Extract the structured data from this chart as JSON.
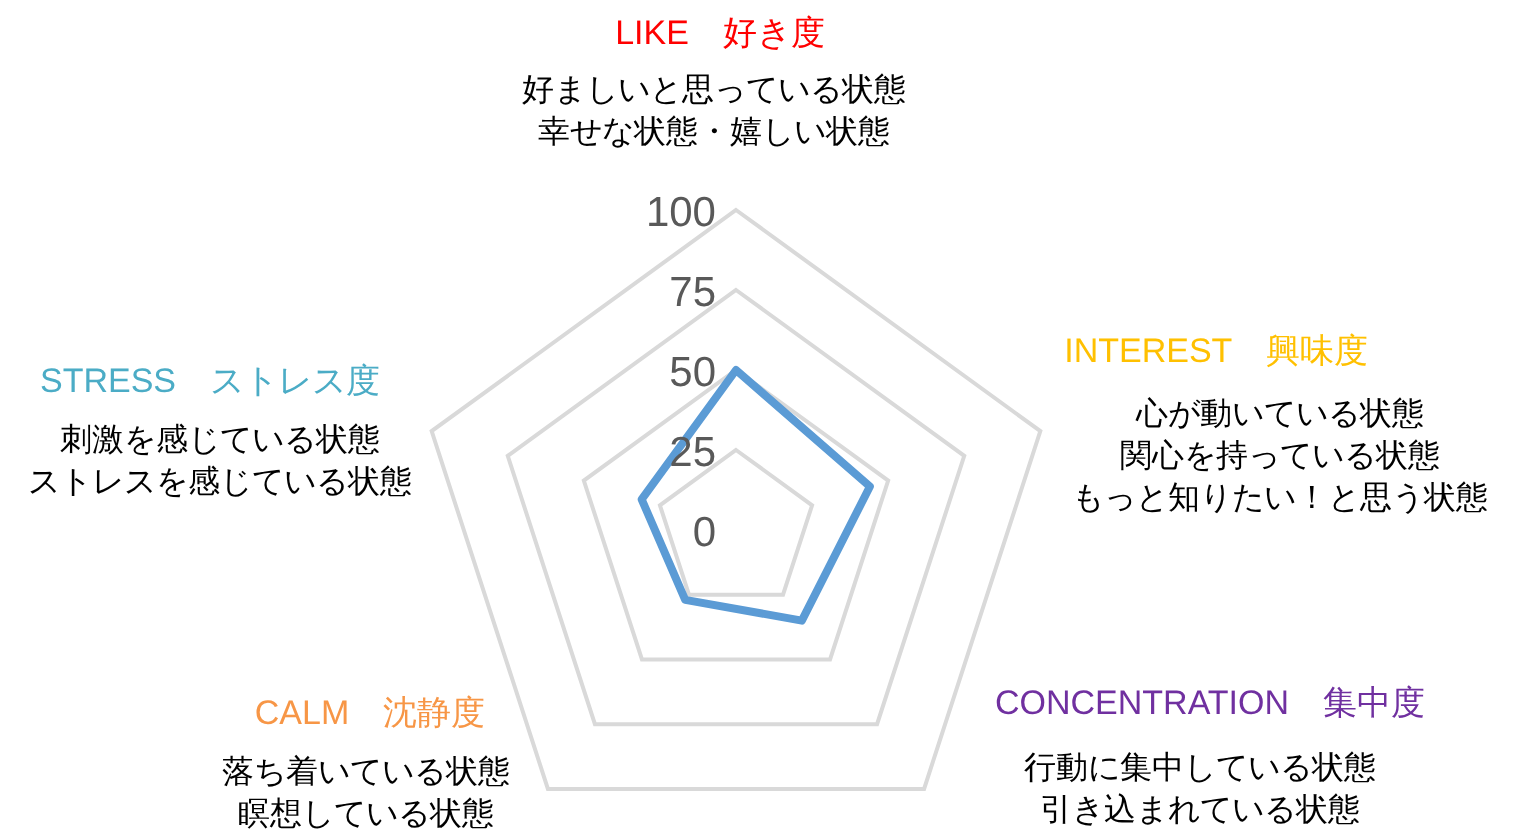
{
  "chart_data": {
    "type": "radar",
    "categories": [
      "LIKE　好き度",
      "INTEREST　興味度",
      "CONCENTRATION　集中度",
      "CALM　沈静度",
      "STRESS　ストレス度"
    ],
    "colors": [
      "#ff0000",
      "#ffc000",
      "#7030a0",
      "#f79646",
      "#4bacc6"
    ],
    "series": [
      {
        "color": "#5b9bd5",
        "values": [
          50,
          44,
          35,
          27,
          31
        ]
      }
    ],
    "ylim": [
      0,
      100
    ],
    "yticks": [
      0,
      25,
      50,
      75,
      100
    ],
    "annotations": [
      "好ましいと思っている状態",
      "幸せな状態・嬉しい状態",
      "心が動いている状態",
      "関心を持っている状態",
      "もっと知りたい！と思う状態",
      "行動に集中している状態",
      "引き込まれている状態",
      "落ち着いている状態",
      "瞑想している状態",
      "刺激を感じている状態",
      "ストレスを感じている状態"
    ],
    "grid": true,
    "marker": "none"
  }
}
